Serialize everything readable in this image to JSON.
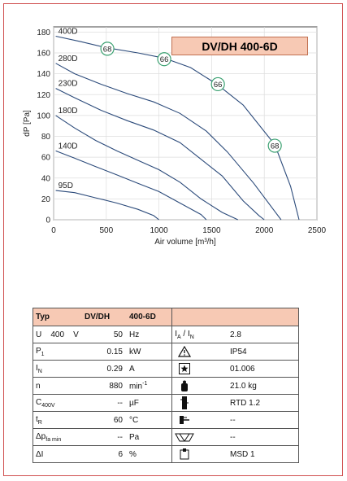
{
  "model_title": "DV/DH 400-6D",
  "chart_data": {
    "type": "line",
    "xlabel": "Air volume [m³/h]",
    "ylabel": "dP [Pa]",
    "xlim": [
      0,
      2500
    ],
    "ylim": [
      0,
      185
    ],
    "xticks": [
      0,
      500,
      1000,
      1500,
      2000,
      2500
    ],
    "yticks": [
      0,
      20,
      40,
      60,
      80,
      100,
      120,
      140,
      160,
      180
    ],
    "grid": true,
    "series": [
      {
        "name": "400D",
        "x": [
          20,
          250,
          500,
          800,
          1050,
          1300,
          1550,
          1800,
          2100,
          2250,
          2330
        ],
        "y": [
          176,
          171,
          165,
          160,
          155,
          146,
          130,
          110,
          72,
          32,
          0
        ]
      },
      {
        "name": "280D",
        "x": [
          20,
          200,
          450,
          700,
          950,
          1200,
          1450,
          1650,
          1900,
          2100,
          2160
        ],
        "y": [
          150,
          140,
          130,
          121,
          113,
          102,
          85,
          65,
          35,
          8,
          0
        ]
      },
      {
        "name": "230D",
        "x": [
          20,
          200,
          450,
          700,
          950,
          1200,
          1400,
          1600,
          1800,
          1950,
          2000
        ],
        "y": [
          126,
          117,
          105,
          95,
          86,
          74,
          58,
          42,
          18,
          4,
          0
        ]
      },
      {
        "name": "180D",
        "x": [
          20,
          200,
          400,
          600,
          800,
          1000,
          1200,
          1400,
          1600,
          1750
        ],
        "y": [
          100,
          88,
          76,
          66,
          57,
          48,
          36,
          20,
          7,
          0
        ]
      },
      {
        "name": "140D",
        "x": [
          20,
          200,
          400,
          600,
          800,
          1000,
          1200,
          1400,
          1450
        ],
        "y": [
          66,
          59,
          51,
          43,
          35,
          27,
          16,
          5,
          0
        ]
      },
      {
        "name": "95D",
        "x": [
          20,
          200,
          400,
          600,
          800,
          950,
          1000
        ],
        "y": [
          28,
          26,
          21,
          16,
          10,
          4,
          0
        ]
      }
    ],
    "annotations": [
      {
        "text": "68",
        "x": 510,
        "y": 164
      },
      {
        "text": "66",
        "x": 1050,
        "y": 154
      },
      {
        "text": "66",
        "x": 1560,
        "y": 130
      },
      {
        "text": "68",
        "x": 2100,
        "y": 71
      }
    ]
  },
  "table": {
    "header": {
      "col1": "Typ",
      "col2": "DV/DH",
      "col3": "400-6D"
    },
    "rows": [
      {
        "name_html": "U&nbsp;&nbsp;&nbsp;&nbsp;400&nbsp;&nbsp;&nbsp;&nbsp;V",
        "value": "50",
        "unit": "Hz",
        "icon": "ia-in-label",
        "right": "2.8"
      },
      {
        "name_html": "P<sub>1</sub>",
        "value": "0.15",
        "unit": "kW",
        "icon": "warning-triangle-icon",
        "right": "IP54"
      },
      {
        "name_html": "I<sub>N</sub>",
        "value": "0.29",
        "unit": "A",
        "icon": "star-box-icon",
        "right": "01.006"
      },
      {
        "name_html": "n",
        "value": "880",
        "unit": "min<sup>-1</sup>",
        "icon": "weight-icon",
        "right": "21.0 kg"
      },
      {
        "name_html": "C<sub>400V</sub>",
        "value": "--",
        "unit": "µF",
        "icon": "thermistor-icon",
        "right": "RTD 1.2"
      },
      {
        "name_html": "t<sub>R</sub>",
        "value": "60",
        "unit": "°C",
        "icon": "plug-icon",
        "right": "--"
      },
      {
        "name_html": "&Delta;p<sub>fa min</sub>",
        "value": "--",
        "unit": "Pa",
        "icon": "pressure-switch-icon",
        "right": "--"
      },
      {
        "name_html": "&Delta;I",
        "value": "6",
        "unit": "%",
        "icon": "motor-switch-icon",
        "right": "MSD 1"
      }
    ]
  },
  "colors": {
    "curve": "#2b4a7a",
    "grid": "#dddddd",
    "accent": "#f7c9b4",
    "frame": "#d05050",
    "badge": "#3aa070"
  }
}
